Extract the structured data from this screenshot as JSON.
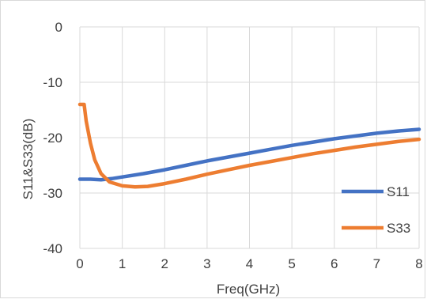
{
  "chart_data": {
    "type": "line",
    "title": "",
    "xlabel": "Freq(GHz)",
    "ylabel": "S11&S33(dB)",
    "xlim": [
      0,
      8
    ],
    "ylim": [
      -40,
      0
    ],
    "x_ticks": [
      "0",
      "1",
      "2",
      "3",
      "4",
      "5",
      "6",
      "7",
      "8"
    ],
    "y_ticks": [
      "0",
      "-10",
      "-20",
      "-30",
      "-40"
    ],
    "grid": true,
    "legend_position": "bottom-right",
    "series": [
      {
        "name": "S11",
        "color": "#4472c4",
        "x": [
          0,
          0.25,
          0.5,
          0.75,
          1,
          1.5,
          2,
          2.5,
          3,
          3.5,
          4,
          4.5,
          5,
          5.5,
          6,
          6.5,
          7,
          7.5,
          8
        ],
        "y": [
          -27.5,
          -27.5,
          -27.6,
          -27.4,
          -27.1,
          -26.5,
          -25.8,
          -25.0,
          -24.2,
          -23.5,
          -22.8,
          -22.1,
          -21.4,
          -20.8,
          -20.2,
          -19.7,
          -19.2,
          -18.8,
          -18.5
        ]
      },
      {
        "name": "S33",
        "color": "#ed7d31",
        "x": [
          0,
          0.1,
          0.15,
          0.25,
          0.35,
          0.5,
          0.7,
          1,
          1.3,
          1.6,
          2,
          2.5,
          3,
          3.5,
          4,
          4.5,
          5,
          5.5,
          6,
          6.5,
          7,
          7.5,
          8
        ],
        "y": [
          -14,
          -14,
          -17,
          -21,
          -24,
          -26.5,
          -28,
          -28.7,
          -28.9,
          -28.8,
          -28.3,
          -27.5,
          -26.6,
          -25.8,
          -25.0,
          -24.3,
          -23.6,
          -22.9,
          -22.3,
          -21.7,
          -21.2,
          -20.7,
          -20.3
        ]
      }
    ]
  }
}
